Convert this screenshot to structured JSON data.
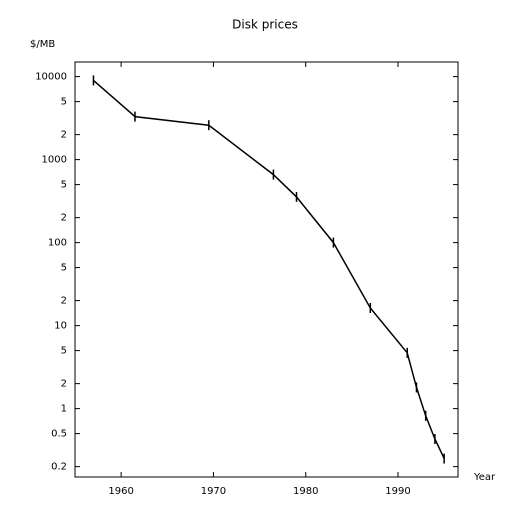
{
  "chart_data": {
    "type": "line",
    "title": "Disk prices",
    "y_label": "$/MB",
    "x_label": "Year",
    "x": [
      1957,
      1961.5,
      1969.5,
      1976.5,
      1979,
      1983,
      1987,
      1991,
      1992,
      1993,
      1994,
      1995
    ],
    "values": [
      9000,
      3300,
      2600,
      660,
      355,
      100,
      16.3,
      4.7,
      1.8,
      0.82,
      0.43,
      0.25
    ],
    "color": "#000000",
    "log_y": true,
    "xlim": [
      1955,
      1996.5
    ],
    "xticks": [
      1960,
      1970,
      1980,
      1990
    ],
    "ylim": [
      0.15,
      15000
    ],
    "yticks": [
      0.2,
      0.5,
      1,
      2,
      5,
      10,
      {
        "value": 20,
        "label": "2"
      },
      {
        "value": 50,
        "label": "5"
      },
      100,
      {
        "value": 200,
        "label": "2"
      },
      {
        "value": 500,
        "label": "5"
      },
      1000,
      {
        "value": 2000,
        "label": "2"
      },
      {
        "value": 5000,
        "label": "5"
      },
      10000
    ],
    "grid": false
  }
}
